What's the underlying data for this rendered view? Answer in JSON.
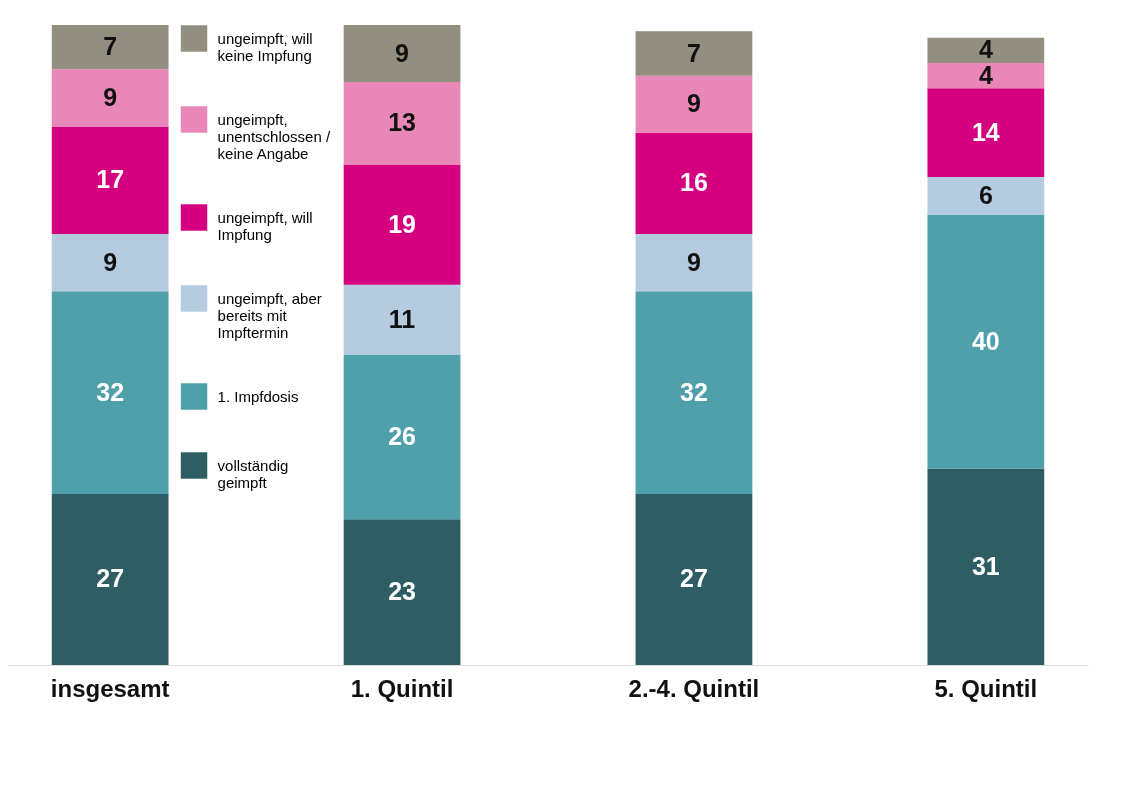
{
  "chart_data": {
    "type": "bar",
    "stacked": true,
    "data_labels": true,
    "legend": "top left",
    "tick_labels": "x",
    "grid": false,
    "categories": [
      "insgesamt",
      "1. Quintil",
      "2.-4. Quintil",
      "5. Quintil"
    ],
    "series": [
      {
        "name": "vollständig geimpft",
        "color": "#2e5e63",
        "values": [
          27,
          23,
          27,
          31
        ]
      },
      {
        "name": "1. Impfdosis",
        "color": "#50a0ac",
        "values": [
          32,
          26,
          32,
          40
        ]
      },
      {
        "name": "ungeimpft, aber bereits mit Impftermin",
        "color": "#b5cbe0",
        "values": [
          9,
          11,
          9,
          6
        ]
      },
      {
        "name": "ungeimpft, will Impfung",
        "color": "#d5007f",
        "values": [
          17,
          19,
          16,
          14
        ]
      },
      {
        "name": "ungeimpft, unentschlossen / keine Angabe",
        "color": "#e887b8",
        "values": [
          9,
          13,
          9,
          4
        ]
      },
      {
        "name": "ungeimpft, will keine Impfung",
        "color": "#928e80",
        "values": [
          7,
          9,
          7,
          4
        ]
      }
    ]
  }
}
